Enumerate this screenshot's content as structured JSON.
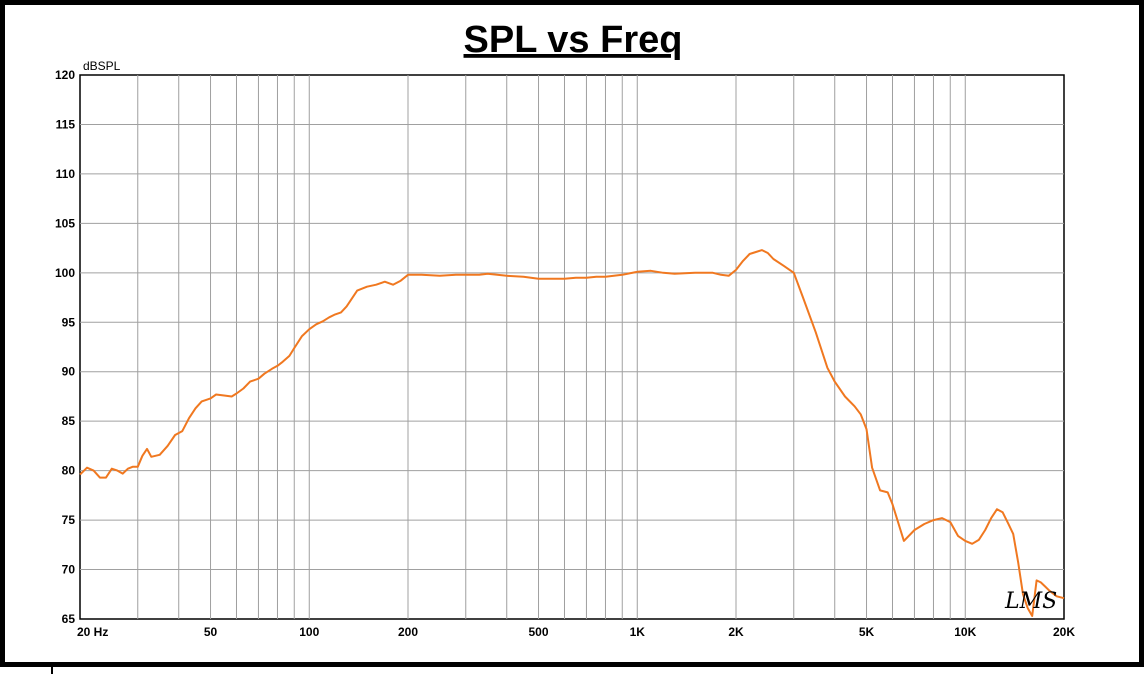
{
  "chart_data": {
    "type": "line",
    "title": "SPL vs Freq",
    "ylabel": "dBSPL",
    "xscale": "log",
    "xlim": [
      20,
      20000
    ],
    "ylim": [
      65,
      120
    ],
    "grid": true,
    "yticks": [
      "65",
      "70",
      "75",
      "80",
      "85",
      "90",
      "95",
      "100",
      "105",
      "110",
      "115",
      "120"
    ],
    "xticks": [
      {
        "value": 20,
        "label": "20  Hz"
      },
      {
        "value": 50,
        "label": "50"
      },
      {
        "value": 100,
        "label": "100"
      },
      {
        "value": 200,
        "label": "200"
      },
      {
        "value": 500,
        "label": "500"
      },
      {
        "value": 1000,
        "label": "1K"
      },
      {
        "value": 2000,
        "label": "2K"
      },
      {
        "value": 5000,
        "label": "5K"
      },
      {
        "value": 10000,
        "label": "10K"
      },
      {
        "value": 20000,
        "label": "20K"
      }
    ],
    "watermark": "LMS",
    "series": [
      {
        "color": "#f07820",
        "x": [
          20,
          21,
          22,
          23,
          24,
          25,
          26,
          27,
          28,
          29,
          30,
          31,
          32,
          33,
          35,
          37,
          39,
          41,
          43,
          45,
          47,
          50,
          52,
          55,
          58,
          60,
          63,
          66,
          70,
          73,
          77,
          80,
          83,
          87,
          90,
          95,
          100,
          105,
          110,
          115,
          120,
          125,
          130,
          140,
          150,
          160,
          170,
          180,
          190,
          200,
          220,
          250,
          280,
          300,
          330,
          350,
          400,
          450,
          500,
          550,
          600,
          650,
          700,
          750,
          800,
          900,
          1000,
          1100,
          1200,
          1300,
          1500,
          1700,
          1800,
          1900,
          2000,
          2100,
          2200,
          2300,
          2400,
          2500,
          2600,
          2800,
          3000,
          3200,
          3500,
          3800,
          4000,
          4300,
          4600,
          4800,
          5000,
          5200,
          5500,
          5800,
          6000,
          6500,
          7000,
          7500,
          8000,
          8500,
          9000,
          9500,
          10000,
          10500,
          11000,
          11500,
          12000,
          12500,
          13000,
          13500,
          14000,
          14500,
          15000,
          15500,
          16000,
          16500,
          17000,
          17500,
          18000,
          19000,
          20000
        ],
        "y": [
          79.6,
          80.3,
          80.0,
          79.3,
          79.3,
          80.2,
          80.0,
          79.7,
          80.2,
          80.4,
          80.4,
          81.5,
          82.2,
          81.4,
          81.6,
          82.5,
          83.6,
          84.0,
          85.3,
          86.3,
          87.0,
          87.3,
          87.7,
          87.6,
          87.5,
          87.8,
          88.3,
          89.0,
          89.3,
          89.8,
          90.3,
          90.6,
          91.0,
          91.6,
          92.4,
          93.6,
          94.3,
          94.8,
          95.1,
          95.5,
          95.8,
          96.0,
          96.6,
          98.2,
          98.6,
          98.8,
          99.1,
          98.8,
          99.2,
          99.8,
          99.8,
          99.7,
          99.8,
          99.8,
          99.8,
          99.9,
          99.7,
          99.6,
          99.4,
          99.4,
          99.4,
          99.5,
          99.5,
          99.6,
          99.6,
          99.8,
          100.1,
          100.2,
          100.0,
          99.9,
          100.0,
          100.0,
          99.8,
          99.7,
          100.3,
          101.2,
          101.9,
          102.1,
          102.3,
          102.0,
          101.4,
          100.7,
          100.0,
          97.5,
          94.0,
          90.4,
          89.0,
          87.5,
          86.5,
          85.7,
          84.2,
          80.3,
          78.0,
          77.8,
          76.6,
          72.9,
          74.0,
          74.6,
          75.0,
          75.2,
          74.8,
          73.4,
          72.9,
          72.6,
          73.0,
          74.0,
          75.2,
          76.1,
          75.8,
          74.7,
          73.6,
          70.7,
          67.5,
          66.1,
          65.3,
          68.9,
          68.7,
          68.3,
          67.9,
          67.3,
          67.1
        ]
      }
    ]
  }
}
